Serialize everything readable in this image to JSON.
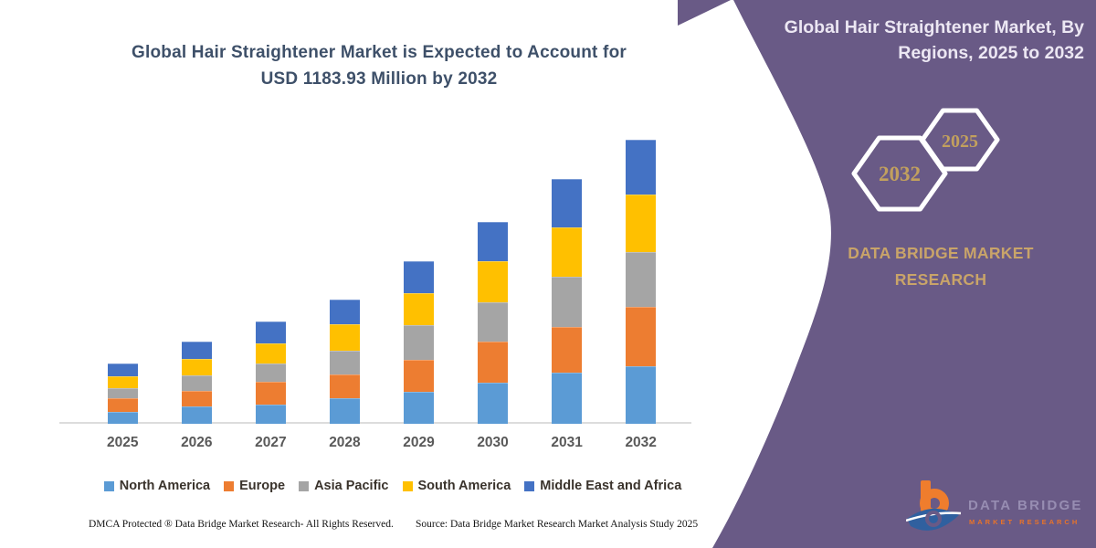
{
  "left": {
    "title_line1": "Global Hair Straightener Market is Expected to Account for",
    "title_line2": "USD 1183.93 Million by 2032",
    "footer_dmca": "DMCA Protected ® Data Bridge Market Research-  All Rights Reserved.",
    "footer_source": "Source: Data Bridge Market Research  Market Analysis Study 2025"
  },
  "chart_data": {
    "type": "bar",
    "stacked": true,
    "title": "Global Hair Straightener Market is Expected to Account for USD 1183.93 Million by 2032",
    "value_unit": "USD Million",
    "categories": [
      "2025",
      "2026",
      "2027",
      "2028",
      "2029",
      "2030",
      "2031",
      "2032"
    ],
    "series": [
      {
        "name": "North America",
        "color": "#5B9BD5",
        "values": [
          51,
          74,
          80,
          108,
          133,
          171,
          213,
          240
        ]
      },
      {
        "name": "Europe",
        "color": "#ED7D31",
        "values": [
          57,
          64,
          95,
          99,
          133,
          171,
          190,
          247
        ]
      },
      {
        "name": "Asia Pacific",
        "color": "#A5A5A5",
        "values": [
          40,
          64,
          76,
          98,
          146,
          165,
          209,
          228
        ]
      },
      {
        "name": "South America",
        "color": "#FFC000",
        "values": [
          51,
          70,
          83,
          112,
          133,
          171,
          207,
          240
        ]
      },
      {
        "name": "Middle East and Africa",
        "color": "#4472C4",
        "values": [
          51,
          70,
          92,
          100,
          133,
          165,
          200,
          229
        ]
      }
    ],
    "totals_estimated": [
      250,
      342,
      426,
      517,
      678,
      843,
      1019,
      1184
    ],
    "annotation": "USD 1183.93 Million by 2032",
    "xlabel": "",
    "ylabel": "",
    "y_axis_visible": false,
    "grid": false,
    "legend_position": "bottom"
  },
  "right_panel": {
    "title": "Global Hair Straightener Market, By Regions, 2025 to 2032",
    "hexagon_back_label": "2032",
    "hexagon_front_label": "2025",
    "brand_line1": "DATA BRIDGE MARKET",
    "brand_line2": "RESEARCH",
    "logo_line1": "DATA BRIDGE",
    "logo_line2": "MARKET RESEARCH",
    "colors": {
      "panel_purple": "#695a86",
      "gold_text": "#c9a469",
      "hex_year_gold": "#c2a05e",
      "logo_orange": "#ef7d2d",
      "logo_blue": "#30609f",
      "logo_gray_lavender": "#978db2"
    }
  }
}
